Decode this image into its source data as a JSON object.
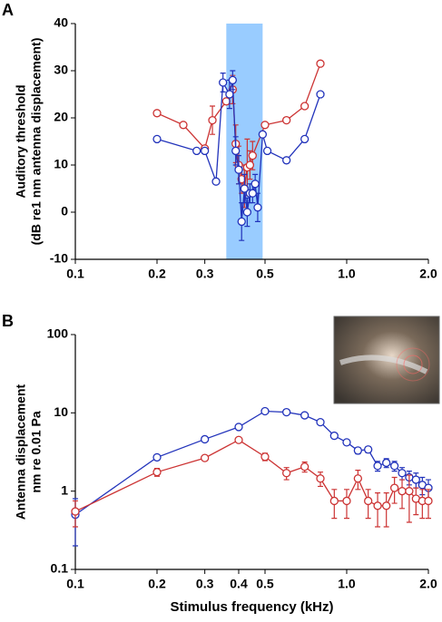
{
  "chart_data": [
    {
      "type": "line",
      "panel": "A",
      "ylabel": [
        "Auditory threshold",
        "(dB re1 nm antenna displacement)"
      ],
      "log_x": true,
      "log_y": false,
      "xlim": [
        0.1,
        2.0
      ],
      "xticks": [
        0.1,
        0.2,
        0.3,
        0.5,
        {
          "value": 1.0,
          "label": "1.0"
        },
        {
          "value": 2.0,
          "label": "2.0"
        }
      ],
      "ylim": [
        -10,
        40
      ],
      "yticks": [
        -10,
        0,
        10,
        20,
        30,
        40
      ],
      "highlight": {
        "xlim": [
          0.36,
          0.49
        ],
        "color": "#99ccff"
      },
      "series": [
        {
          "name": "red",
          "color": "#cc3333",
          "x": [
            0.2,
            0.25,
            0.3,
            0.32,
            0.36,
            0.38,
            0.39,
            0.4,
            0.41,
            0.42,
            0.43,
            0.44,
            0.45,
            0.5,
            0.6,
            0.7,
            0.8
          ],
          "values": [
            21,
            18.5,
            13.5,
            19.5,
            23.5,
            26,
            14.5,
            10,
            7,
            5,
            9.5,
            10,
            12,
            18.5,
            19.5,
            22.5,
            31.5
          ],
          "errors": [
            null,
            null,
            null,
            3,
            null,
            3,
            4,
            4,
            3,
            4,
            6,
            3,
            3,
            null,
            null,
            null,
            null
          ]
        },
        {
          "name": "blue",
          "color": "#2233bb",
          "x": [
            0.2,
            0.28,
            0.3,
            0.33,
            0.35,
            0.37,
            0.38,
            0.39,
            0.4,
            0.41,
            0.42,
            0.43,
            0.44,
            0.45,
            0.46,
            0.47,
            0.49,
            0.51,
            0.6,
            0.7,
            0.8
          ],
          "values": [
            15.5,
            13,
            13,
            6.5,
            27.5,
            25,
            28,
            13,
            9,
            -2,
            5,
            0,
            4,
            4,
            6,
            1,
            16.5,
            13,
            11,
            15.5,
            25
          ],
          "errors": [
            null,
            null,
            null,
            null,
            2,
            3,
            2,
            3,
            3,
            4,
            3,
            3,
            2,
            2,
            2,
            3,
            null,
            null,
            null,
            null,
            null
          ]
        }
      ]
    },
    {
      "type": "line",
      "panel": "B",
      "ylabel": [
        "Antenna displacement",
        "nm re 0.01 Pa"
      ],
      "xlabel": "Stimulus frequency (kHz)",
      "log_x": true,
      "log_y": true,
      "xlim": [
        0.1,
        2.0
      ],
      "xticks": [
        0.1,
        0.2,
        0.3,
        0.4,
        0.5,
        {
          "value": 1.0,
          "label": "1.0"
        },
        {
          "value": 2.0,
          "label": "2.0"
        }
      ],
      "ylim": [
        0.1,
        100
      ],
      "yticks": [
        0.1,
        1,
        10,
        100
      ],
      "series": [
        {
          "name": "blue",
          "color": "#2233bb",
          "x": [
            0.1,
            0.2,
            0.3,
            0.4,
            0.5,
            0.6,
            0.7,
            0.8,
            0.9,
            1.0,
            1.1,
            1.2,
            1.3,
            1.4,
            1.5,
            1.6,
            1.7,
            1.8,
            1.9,
            2.0
          ],
          "values": [
            0.5,
            2.7,
            4.6,
            6.6,
            10.5,
            10.2,
            9.3,
            7.6,
            5.1,
            4.2,
            3.3,
            3.4,
            2.1,
            2.3,
            2.1,
            1.7,
            1.5,
            1.4,
            1.2,
            1.1
          ],
          "errors": [
            0.3,
            0.2,
            0.3,
            0.4,
            0.5,
            0.5,
            0.5,
            0.4,
            0.4,
            0.3,
            0.3,
            0.3,
            0.3,
            0.3,
            0.3,
            0.3,
            0.3,
            0.3,
            0.3,
            0.3
          ]
        },
        {
          "name": "red",
          "color": "#cc3333",
          "x": [
            0.1,
            0.2,
            0.3,
            0.4,
            0.5,
            0.6,
            0.7,
            0.8,
            0.9,
            1.0,
            1.1,
            1.2,
            1.3,
            1.4,
            1.5,
            1.6,
            1.7,
            1.8,
            1.9,
            2.0
          ],
          "values": [
            0.55,
            1.75,
            2.65,
            4.5,
            2.75,
            1.7,
            2.05,
            1.45,
            0.75,
            0.75,
            1.45,
            0.75,
            0.65,
            0.65,
            1.1,
            1.0,
            1.0,
            0.8,
            0.75,
            0.75
          ],
          "errors": [
            0.2,
            0.2,
            0.2,
            0.3,
            0.3,
            0.3,
            0.3,
            0.3,
            0.3,
            0.3,
            0.4,
            0.3,
            0.3,
            0.3,
            0.4,
            0.4,
            0.6,
            0.3,
            0.3,
            0.3
          ]
        }
      ]
    }
  ]
}
